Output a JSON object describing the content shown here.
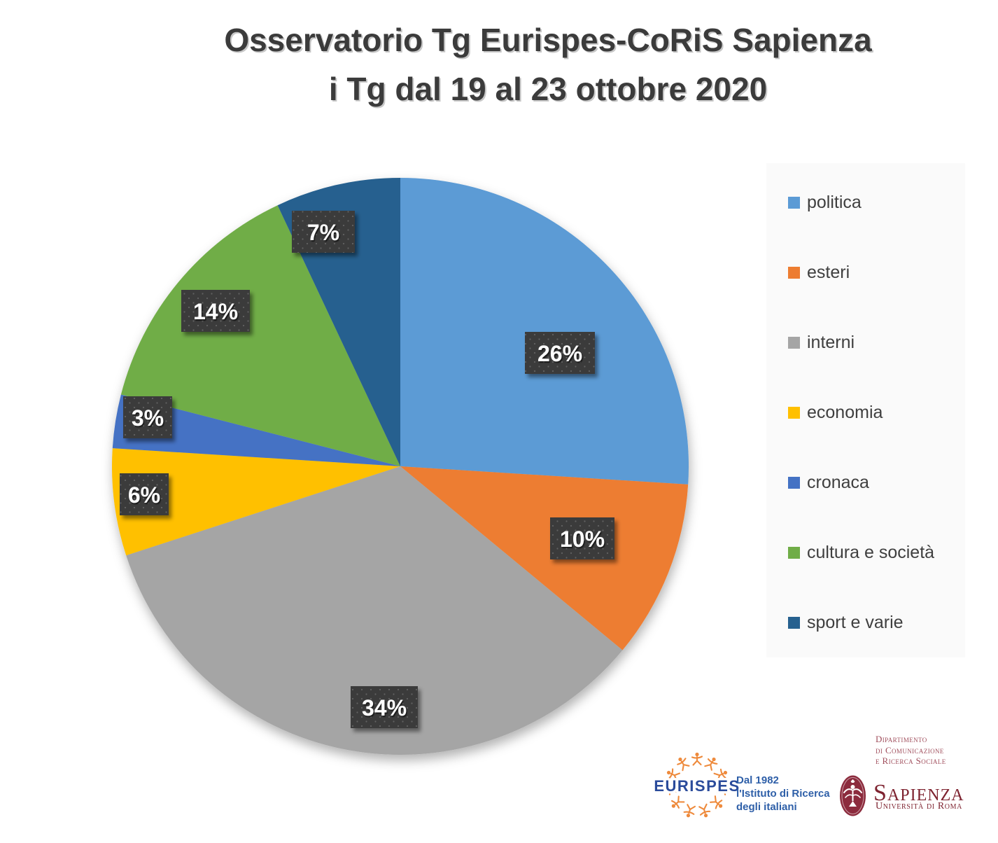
{
  "title": {
    "line1": "Osservatorio Tg Eurispes-CoRiS Sapienza",
    "line2": "i Tg dal 19 al 23 ottobre 2020"
  },
  "chart_data": {
    "type": "pie",
    "title": "Osservatorio Tg Eurispes-CoRiS Sapienza - i Tg dal 19 al 23 ottobre 2020",
    "categories": [
      "politica",
      "esteri",
      "interni",
      "economia",
      "cronaca",
      "cultura e società",
      "sport e varie"
    ],
    "values": [
      26,
      10,
      34,
      6,
      3,
      14,
      7
    ],
    "data_labels": [
      "26%",
      "10%",
      "34%",
      "6%",
      "3%",
      "14%",
      "7%"
    ],
    "unit": "%",
    "colors": [
      "#5B9BD5",
      "#ED7D31",
      "#A5A5A5",
      "#FFC000",
      "#4472C4",
      "#70AD47",
      "#26618F"
    ],
    "start_angle": "12 o'clock, clockwise",
    "legend_position": "right",
    "label_box_color": "#3B3B3B",
    "label_text_color": "#FFFFFF"
  },
  "footer": {
    "eurispes": {
      "name": "EURISPES",
      "tagline_lines": [
        "Dal 1982",
        "l'Istituto di Ricerca",
        "degli italiani"
      ],
      "brand_blue": "#2A4B9B",
      "brand_orange": "#EE8A3C"
    },
    "sapienza": {
      "department_line1": "Dipartimento",
      "department_line2": "di Comunicazione",
      "department_line3": "e Ricerca Sociale",
      "name": "Sapienza",
      "subtitle": "Università di Roma",
      "brand_maroon": "#8C2B3D"
    }
  }
}
